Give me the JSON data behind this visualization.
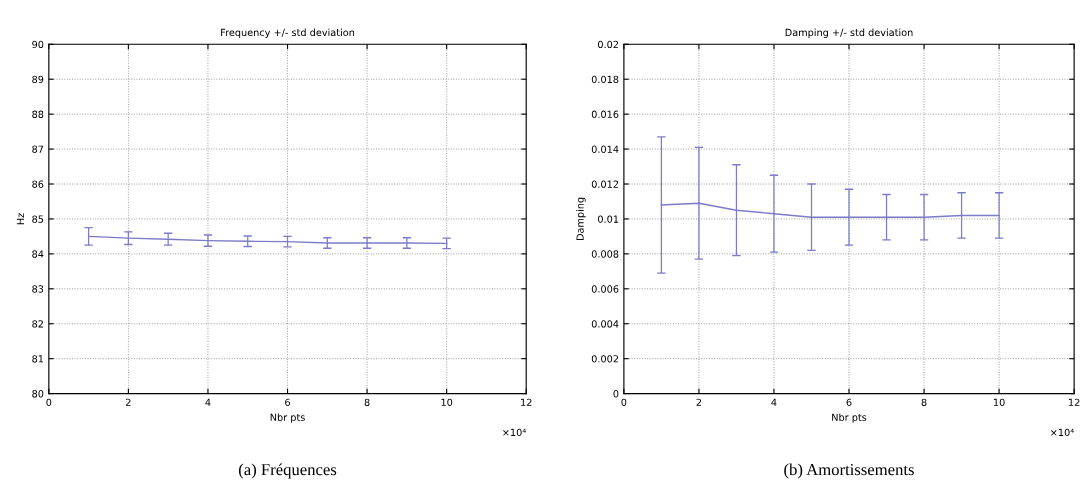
{
  "chart_data": [
    {
      "type": "line",
      "title": "Frequency +/- std deviation",
      "xlabel": "Nbr pts",
      "ylabel": "Hz",
      "x": [
        1,
        2,
        3,
        4,
        5,
        6,
        7,
        8,
        9,
        10
      ],
      "series": [
        {
          "color": "#7b7bc8",
          "values": [
            84.5,
            84.45,
            84.42,
            84.38,
            84.36,
            84.35,
            84.31,
            84.31,
            84.31,
            84.3
          ],
          "errors": [
            0.25,
            0.18,
            0.17,
            0.16,
            0.15,
            0.15,
            0.15,
            0.15,
            0.15,
            0.15
          ]
        }
      ],
      "xlim": [
        0,
        12
      ],
      "xticks": [
        0,
        2,
        4,
        6,
        8,
        10,
        12
      ],
      "ylim": [
        80,
        90
      ],
      "yticks": [
        80,
        81,
        82,
        83,
        84,
        85,
        86,
        87,
        88,
        89,
        90
      ],
      "grid": true,
      "line_style": "solid",
      "marker": "none",
      "annotations": [
        "×10⁴",
        "(a) Fréquences"
      ]
    },
    {
      "type": "line",
      "title": "Damping +/- std deviation",
      "xlabel": "Nbr pts",
      "ylabel": "Damping",
      "x": [
        1,
        2,
        3,
        4,
        5,
        6,
        7,
        8,
        9,
        10
      ],
      "series": [
        {
          "color": "#7b7bc8",
          "values": [
            0.0108,
            0.0109,
            0.0105,
            0.0103,
            0.0101,
            0.0101,
            0.0101,
            0.0101,
            0.0102,
            0.0102
          ],
          "errors": [
            0.0039,
            0.0032,
            0.0026,
            0.0022,
            0.0019,
            0.0016,
            0.0013,
            0.0013,
            0.0013,
            0.0013
          ]
        }
      ],
      "xlim": [
        0,
        12
      ],
      "xticks": [
        0,
        2,
        4,
        6,
        8,
        10,
        12
      ],
      "ylim": [
        0,
        0.02
      ],
      "yticks": [
        0,
        {
          "value": 0.002,
          "label": "0.002"
        },
        {
          "value": 0.004,
          "label": "0.004"
        },
        {
          "value": 0.006,
          "label": "0.006"
        },
        {
          "value": 0.008,
          "label": "0.008"
        },
        {
          "value": 0.01,
          "label": "0.01"
        },
        {
          "value": 0.012,
          "label": "0.012"
        },
        {
          "value": 0.014,
          "label": "0.014"
        },
        {
          "value": 0.016,
          "label": "0.016"
        },
        {
          "value": 0.018,
          "label": "0.018"
        },
        {
          "value": 0.02,
          "label": "0.02"
        }
      ],
      "grid": true,
      "line_style": "solid",
      "marker": "none",
      "annotations": [
        "×10⁴",
        "(b) Amortissements"
      ]
    }
  ]
}
